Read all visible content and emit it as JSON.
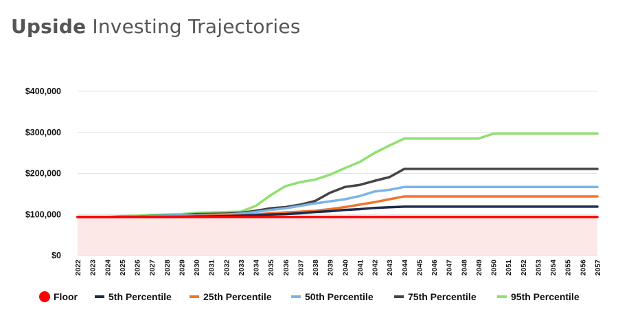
{
  "title": {
    "bold": "Upside",
    "rest": "Investing Trajectories"
  },
  "chart_data": {
    "type": "line",
    "title": "Upside Investing Trajectories",
    "xlabel": "",
    "ylabel": "",
    "ylim": [
      0,
      400000
    ],
    "y_ticks": [
      0,
      100000,
      200000,
      300000,
      400000
    ],
    "y_tick_labels": [
      "$0",
      "$100,000",
      "$200,000",
      "$300,000",
      "$400,000"
    ],
    "grid": true,
    "legend_position": "bottom",
    "x": [
      "2022",
      "2023",
      "2024",
      "2025",
      "2026",
      "2027",
      "2028",
      "2029",
      "2030",
      "2031",
      "2032",
      "2033",
      "2034",
      "2035",
      "2036",
      "2037",
      "2038",
      "2039",
      "2040",
      "2041",
      "2042",
      "2043",
      "2044",
      "2045",
      "2046",
      "2047",
      "2048",
      "2049",
      "2050",
      "2051",
      "2052",
      "2053",
      "2054",
      "2055",
      "2056",
      "2057"
    ],
    "series": [
      {
        "name": "Floor",
        "color": "#ff0000",
        "fill": "#fde8e8",
        "marker": "circle",
        "values": [
          94000,
          94000,
          94000,
          94000,
          94000,
          94000,
          94000,
          94000,
          94000,
          94000,
          94000,
          94000,
          94000,
          94000,
          94000,
          94000,
          94000,
          94000,
          94000,
          94000,
          94000,
          94000,
          94000,
          94000,
          94000,
          94000,
          94000,
          94000,
          94000,
          94000,
          94000,
          94000,
          94000,
          94000,
          94000,
          94000
        ]
      },
      {
        "name": "5th Percentile",
        "color": "#1a2b4c",
        "values": [
          94000,
          94000,
          94000,
          94000,
          94000,
          94000,
          94000,
          94000,
          95000,
          95500,
          96000,
          97000,
          98000,
          100000,
          101000,
          103000,
          106000,
          108000,
          111000,
          113000,
          116000,
          117500,
          119000,
          119000,
          119000,
          119000,
          119000,
          119000,
          119000,
          119000,
          119000,
          119000,
          119000,
          119000,
          119000,
          119000
        ]
      },
      {
        "name": "25th Percentile",
        "color": "#f0732d",
        "values": [
          94000,
          94000,
          94000,
          94000,
          94500,
          95000,
          95500,
          96000,
          96500,
          97000,
          97500,
          98500,
          100000,
          103000,
          105000,
          107000,
          109000,
          113000,
          118000,
          124000,
          130000,
          137000,
          144000,
          144000,
          144000,
          144000,
          144000,
          144000,
          144000,
          144000,
          144000,
          144000,
          144000,
          144000,
          144000,
          144000
        ]
      },
      {
        "name": "50th Percentile",
        "color": "#7db3e8",
        "values": [
          94000,
          94000,
          94000,
          94500,
          95000,
          96000,
          97000,
          97500,
          98000,
          99000,
          100000,
          102000,
          106000,
          111000,
          115000,
          121000,
          127000,
          132000,
          137000,
          145000,
          156000,
          160000,
          167000,
          167000,
          167000,
          167000,
          167000,
          167000,
          167000,
          167000,
          167000,
          167000,
          167000,
          167000,
          167000,
          167000
        ]
      },
      {
        "name": "75th Percentile",
        "color": "#444444",
        "values": [
          94000,
          94000,
          94000,
          94500,
          95000,
          96500,
          97500,
          98000,
          101000,
          101500,
          102000,
          104000,
          109000,
          115000,
          118000,
          124000,
          133000,
          153000,
          167000,
          172000,
          182000,
          191000,
          211000,
          211000,
          211000,
          211000,
          211000,
          211000,
          211000,
          211000,
          211000,
          211000,
          211000,
          211000,
          211000,
          211000
        ]
      },
      {
        "name": "95th Percentile",
        "color": "#90e070",
        "values": [
          94000,
          94000,
          94000,
          96000,
          97000,
          99000,
          100000,
          101000,
          104000,
          105000,
          106000,
          107000,
          121000,
          147000,
          169000,
          179000,
          185000,
          197000,
          213000,
          228000,
          250000,
          268000,
          285000,
          285000,
          285000,
          285000,
          285000,
          285000,
          297000,
          297000,
          297000,
          297000,
          297000,
          297000,
          297000,
          297000
        ]
      }
    ]
  }
}
